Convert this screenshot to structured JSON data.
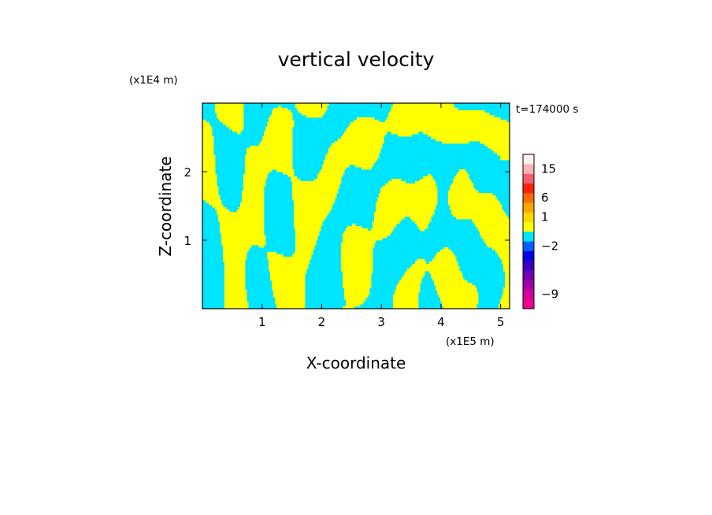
{
  "chart_data": {
    "type": "heatmap",
    "title": "vertical velocity",
    "xlabel": "X-coordinate",
    "ylabel": "Z-coordinate",
    "x_unit": "(x1E5 m)",
    "y_unit": "(x1E4 m)",
    "time_label": "t=174000 s",
    "xlim": [
      0,
      5.15
    ],
    "ylim": [
      0,
      3.0
    ],
    "x_ticks": [
      1,
      2,
      3,
      4,
      5
    ],
    "x_tick_labels": [
      "1",
      "2",
      "3",
      "4",
      "5"
    ],
    "y_ticks": [
      1,
      2
    ],
    "y_tick_labels": [
      "1",
      "2"
    ],
    "field_colors": {
      "positive": "#ffff00",
      "negative": "#00e5ff"
    },
    "colorbar": {
      "levels": [
        {
          "color": "#f00090"
        },
        {
          "color": "#d0009a"
        },
        {
          "color": "#a000a8"
        },
        {
          "color": "#7000b0"
        },
        {
          "color": "#3a00c0"
        },
        {
          "color": "#0000e0"
        },
        {
          "color": "#0060ff"
        },
        {
          "color": "#00e5ff"
        },
        {
          "color": "#ffff00"
        },
        {
          "color": "#ffd700"
        },
        {
          "color": "#ffa500"
        },
        {
          "color": "#ff6a00"
        },
        {
          "color": "#ff2400"
        },
        {
          "color": "#f06070"
        },
        {
          "color": "#f8b4b4"
        },
        {
          "color": "#fff0ee"
        }
      ],
      "labels": [
        {
          "text": "15",
          "level": 14
        },
        {
          "text": "6",
          "level": 11
        },
        {
          "text": "1",
          "level": 9
        },
        {
          "text": "−2",
          "level": 6
        },
        {
          "text": "−9",
          "level": 1
        }
      ]
    }
  }
}
